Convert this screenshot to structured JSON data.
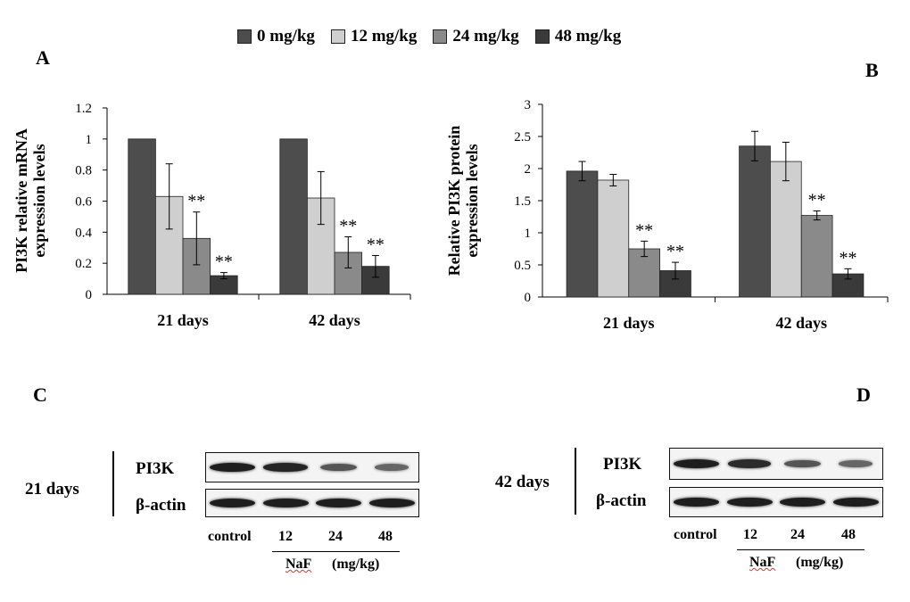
{
  "legend": {
    "items": [
      {
        "label": "0 mg/kg",
        "color": "#4d4d4d"
      },
      {
        "label": "12 mg/kg",
        "color": "#cfcfcf"
      },
      {
        "label": "24 mg/kg",
        "color": "#8a8a8a"
      },
      {
        "label": "48 mg/kg",
        "color": "#3a3a3a"
      }
    ]
  },
  "panels": {
    "a": "A",
    "b": "B",
    "c": "C",
    "d": "D"
  },
  "chart_data": [
    {
      "type": "bar",
      "panel": "A",
      "ylabel": "PI3K relative mRNA expression levels",
      "ylabel_lines": [
        "PI3K relative mRNA",
        "expression levels"
      ],
      "categories": [
        "21 days",
        "42 days"
      ],
      "ylim": [
        0,
        1.2
      ],
      "yticks": [
        "0",
        "0.2",
        "0.4",
        "0.6",
        "0.8",
        "1",
        "1.2"
      ],
      "series": [
        {
          "name": "0 mg/kg",
          "values": [
            1.0,
            1.0
          ],
          "errors": [
            0,
            0
          ],
          "sig": [
            "",
            ""
          ]
        },
        {
          "name": "12 mg/kg",
          "values": [
            0.63,
            0.62
          ],
          "errors": [
            0.21,
            0.17
          ],
          "sig": [
            "",
            ""
          ]
        },
        {
          "name": "24 mg/kg",
          "values": [
            0.36,
            0.27
          ],
          "errors": [
            0.17,
            0.1
          ],
          "sig": [
            "**",
            "**"
          ]
        },
        {
          "name": "48 mg/kg",
          "values": [
            0.12,
            0.18
          ],
          "errors": [
            0.02,
            0.07
          ],
          "sig": [
            "**",
            "**"
          ]
        }
      ]
    },
    {
      "type": "bar",
      "panel": "B",
      "ylabel": "Relative PI3K protein expression levels",
      "ylabel_lines": [
        "Relative PI3K protein",
        "expression levels"
      ],
      "categories": [
        "21 days",
        "42 days"
      ],
      "ylim": [
        0,
        3
      ],
      "yticks": [
        "0",
        "0.5",
        "1",
        "1.5",
        "2",
        "2.5",
        "3"
      ],
      "series": [
        {
          "name": "0 mg/kg",
          "values": [
            1.96,
            2.35
          ],
          "errors": [
            0.15,
            0.23
          ],
          "sig": [
            "",
            ""
          ]
        },
        {
          "name": "12 mg/kg",
          "values": [
            1.82,
            2.11
          ],
          "errors": [
            0.09,
            0.3
          ],
          "sig": [
            "",
            ""
          ]
        },
        {
          "name": "24 mg/kg",
          "values": [
            0.75,
            1.27
          ],
          "errors": [
            0.12,
            0.07
          ],
          "sig": [
            "**",
            "**"
          ]
        },
        {
          "name": "48 mg/kg",
          "values": [
            0.41,
            0.36
          ],
          "errors": [
            0.13,
            0.08
          ],
          "sig": [
            "**",
            "**"
          ]
        }
      ]
    }
  ],
  "blots": {
    "c": {
      "group": "21 days",
      "rows": [
        "PI3K",
        "β-actin"
      ],
      "lanes": [
        "control",
        "12",
        "24",
        "48"
      ],
      "treatment": "NaF",
      "unit": "(mg/kg)",
      "pi3k_intensity": [
        1.0,
        0.95,
        0.55,
        0.4
      ]
    },
    "d": {
      "group": "42 days",
      "rows": [
        "PI3K",
        "β-actin"
      ],
      "lanes": [
        "control",
        "12",
        "24",
        "48"
      ],
      "treatment": "NaF",
      "unit": "(mg/kg)",
      "pi3k_intensity": [
        1.0,
        0.9,
        0.55,
        0.4
      ]
    }
  }
}
